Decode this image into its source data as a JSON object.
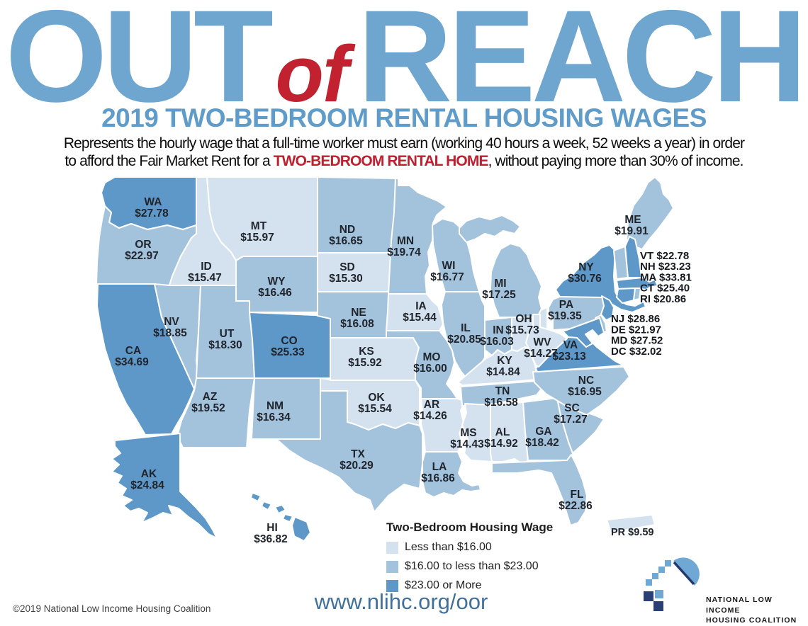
{
  "title": {
    "part1": "OUT",
    "part2": "of",
    "part3": "REACH"
  },
  "subtitle": "2019 TWO-BEDROOM RENTAL HOUSING WAGES",
  "description": {
    "line1": "Represents the hourly wage that a full-time worker must earn (working 40 hours a week, 52 weeks a year) in order",
    "line2_prefix": "to afford the Fair Market Rent for a ",
    "line2_highlight": "TWO-BEDROOM RENTAL HOME",
    "line2_suffix": ", without paying more than 30% of income."
  },
  "legend": {
    "title": "Two-Bedroom Housing Wage",
    "items": [
      {
        "label": "Less than $16.00",
        "color": "#d3e2ee"
      },
      {
        "label": "$16.00 to less than $23.00",
        "color": "#a3c2dc"
      },
      {
        "label": "$23.00 or More",
        "color": "#5e98c8"
      }
    ]
  },
  "website": "www.nlihc.org/oor",
  "copyright": "©2019 National Low Income Housing Coalition",
  "logo": {
    "line1": "NATIONAL LOW INCOME",
    "line2": "HOUSING COALITION"
  },
  "map": {
    "states": [
      {
        "abbr": "WA",
        "wage": "$27.78",
        "band": "high"
      },
      {
        "abbr": "OR",
        "wage": "$22.97",
        "band": "mid"
      },
      {
        "abbr": "CA",
        "wage": "$34.69",
        "band": "high"
      },
      {
        "abbr": "ID",
        "wage": "$15.47",
        "band": "low"
      },
      {
        "abbr": "NV",
        "wage": "$18.85",
        "band": "mid"
      },
      {
        "abbr": "UT",
        "wage": "$18.30",
        "band": "mid"
      },
      {
        "abbr": "AZ",
        "wage": "$19.52",
        "band": "mid"
      },
      {
        "abbr": "MT",
        "wage": "$15.97",
        "band": "low"
      },
      {
        "abbr": "WY",
        "wage": "$16.46",
        "band": "mid"
      },
      {
        "abbr": "CO",
        "wage": "$25.33",
        "band": "high"
      },
      {
        "abbr": "NM",
        "wage": "$16.34",
        "band": "mid"
      },
      {
        "abbr": "ND",
        "wage": "$16.65",
        "band": "mid"
      },
      {
        "abbr": "SD",
        "wage": "$15.30",
        "band": "low"
      },
      {
        "abbr": "NE",
        "wage": "$16.08",
        "band": "mid"
      },
      {
        "abbr": "KS",
        "wage": "$15.92",
        "band": "low"
      },
      {
        "abbr": "OK",
        "wage": "$15.54",
        "band": "low"
      },
      {
        "abbr": "TX",
        "wage": "$20.29",
        "band": "mid"
      },
      {
        "abbr": "MN",
        "wage": "$19.74",
        "band": "mid"
      },
      {
        "abbr": "IA",
        "wage": "$15.44",
        "band": "low"
      },
      {
        "abbr": "MO",
        "wage": "$16.00",
        "band": "mid"
      },
      {
        "abbr": "AR",
        "wage": "$14.26",
        "band": "low"
      },
      {
        "abbr": "LA",
        "wage": "$16.86",
        "band": "mid"
      },
      {
        "abbr": "WI",
        "wage": "$16.77",
        "band": "mid"
      },
      {
        "abbr": "IL",
        "wage": "$20.85",
        "band": "mid"
      },
      {
        "abbr": "IN",
        "wage": "$16.03",
        "band": "mid"
      },
      {
        "abbr": "OH",
        "wage": "$15.73",
        "band": "low"
      },
      {
        "abbr": "MI",
        "wage": "$17.25",
        "band": "mid"
      },
      {
        "abbr": "KY",
        "wage": "$14.84",
        "band": "low"
      },
      {
        "abbr": "TN",
        "wage": "$16.58",
        "band": "mid"
      },
      {
        "abbr": "MS",
        "wage": "$14.43",
        "band": "low"
      },
      {
        "abbr": "AL",
        "wage": "$14.92",
        "band": "low"
      },
      {
        "abbr": "GA",
        "wage": "$18.42",
        "band": "mid"
      },
      {
        "abbr": "FL",
        "wage": "$22.86",
        "band": "mid"
      },
      {
        "abbr": "SC",
        "wage": "$17.27",
        "band": "mid"
      },
      {
        "abbr": "NC",
        "wage": "$16.95",
        "band": "mid"
      },
      {
        "abbr": "VA",
        "wage": "$23.13",
        "band": "high"
      },
      {
        "abbr": "WV",
        "wage": "$14.27",
        "band": "low"
      },
      {
        "abbr": "PA",
        "wage": "$19.35",
        "band": "mid"
      },
      {
        "abbr": "NY",
        "wage": "$30.76",
        "band": "high"
      },
      {
        "abbr": "ME",
        "wage": "$19.91",
        "band": "mid"
      },
      {
        "abbr": "VT",
        "wage": "$22.78",
        "band": "mid",
        "callout": 1
      },
      {
        "abbr": "NH",
        "wage": "$23.23",
        "band": "high",
        "callout": 1
      },
      {
        "abbr": "MA",
        "wage": "$33.81",
        "band": "high",
        "callout": 1
      },
      {
        "abbr": "CT",
        "wage": "$25.40",
        "band": "high",
        "callout": 1
      },
      {
        "abbr": "RI",
        "wage": "$20.86",
        "band": "mid",
        "callout": 1
      },
      {
        "abbr": "NJ",
        "wage": "$28.86",
        "band": "high",
        "callout": 2
      },
      {
        "abbr": "DE",
        "wage": "$21.97",
        "band": "mid",
        "callout": 2
      },
      {
        "abbr": "MD",
        "wage": "$27.52",
        "band": "high",
        "callout": 2
      },
      {
        "abbr": "DC",
        "wage": "$32.02",
        "band": "high",
        "callout": 2
      },
      {
        "abbr": "AK",
        "wage": "$24.84",
        "band": "high"
      },
      {
        "abbr": "HI",
        "wage": "$36.82",
        "band": "high"
      },
      {
        "abbr": "PR",
        "wage": "$9.59",
        "band": "low"
      }
    ]
  }
}
